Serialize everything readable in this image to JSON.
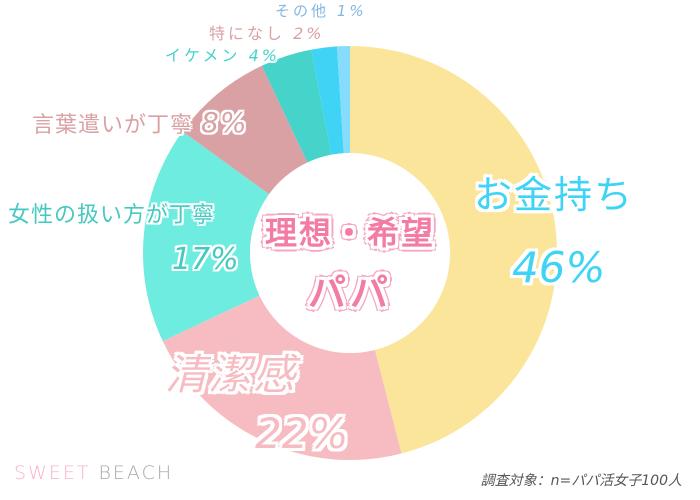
{
  "chart_data": {
    "type": "pie",
    "variant": "donut",
    "title": "理想・希望パパ",
    "title_lines": [
      "理想・希望",
      "パパ"
    ],
    "categories": [
      "お金持ち",
      "清潔感",
      "女性の扱い方が丁寧",
      "言葉遣いが丁寧",
      "イケメン",
      "特になし",
      "その他"
    ],
    "values": [
      46,
      22,
      17,
      8,
      4,
      2,
      1
    ],
    "unit": "%",
    "colors": [
      "#fbe59a",
      "#f7bcc2",
      "#6eece0",
      "#d9a1a3",
      "#45d3ca",
      "#3fd4f5",
      "#86dcfd"
    ],
    "label_colors": [
      "#3fd4f5",
      "#f7bcc2",
      "#45c9c0",
      "#d9a1a3",
      "#45d3ca",
      "#d9a1a3",
      "#86b7e0"
    ],
    "start_angle_deg": 0,
    "direction": "clockwise",
    "legend_position": "none"
  },
  "labels": {
    "okanemochi": {
      "name": "お金持ち",
      "pct": "46%"
    },
    "seiketsukan": {
      "name": "清潔感",
      "pct": "22%"
    },
    "josei": {
      "name": "女性の扱い方が丁寧",
      "pct": "17%"
    },
    "kotoba": {
      "name": "言葉遣いが丁寧",
      "pct": "8%"
    },
    "ikemen": {
      "name": "イケメン",
      "pct": "4%"
    },
    "tokuninashi": {
      "name": "特になし",
      "pct": "2%"
    },
    "sonota": {
      "name": "その他",
      "pct": "1%"
    }
  },
  "center": {
    "line1": "理想・希望",
    "line2": "パパ"
  },
  "footer": {
    "logo_part1": "SWEET",
    "logo_part2": "BEACH",
    "source": "調査対象：n=パパ活女子100人"
  }
}
